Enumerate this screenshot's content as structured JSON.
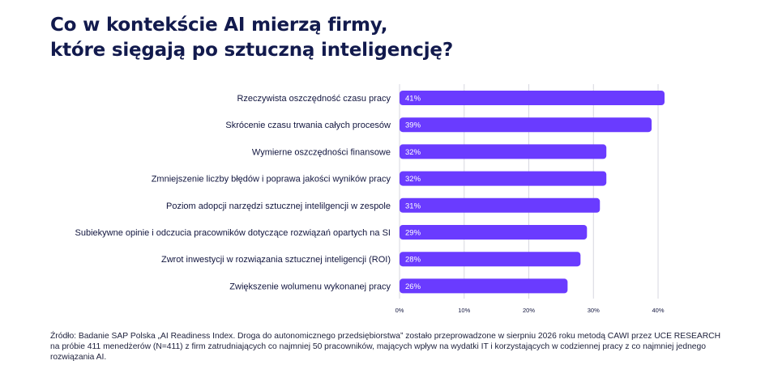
{
  "title_line1": "Co w kontekście AI mierzą firmy,",
  "title_line2": "które sięgają po sztuczną inteligencję?",
  "chart_data": {
    "type": "bar",
    "orientation": "horizontal",
    "categories": [
      "Rzeczywista oszczędność czasu pracy",
      "Skrócenie czasu trwania całych procesów",
      "Wymierne oszczędności finansowe",
      "Zmniejszenie liczby błędów i poprawa jakości wyników pracy",
      "Poziom adopcji narzędzi sztucznej intelilgencji w zespole",
      "Subiekywne opinie i odczucia pracowników dotyczące rozwiązań opartych na SI",
      "Zwrot inwestycji w rozwiązania sztucznej inteligencji (ROI)",
      "Zwiększenie wolumenu wykonanej pracy"
    ],
    "values": [
      41,
      39,
      32,
      32,
      31,
      29,
      28,
      26
    ],
    "value_labels": [
      "41%",
      "39%",
      "32%",
      "32%",
      "31%",
      "29%",
      "28%",
      "26%"
    ],
    "xlim": [
      0,
      41
    ],
    "x_ticks": [
      0,
      10,
      20,
      30,
      40
    ],
    "x_tick_labels": [
      "0%",
      "10%",
      "20%",
      "30%",
      "40%"
    ],
    "grid": "vertical",
    "bar_color": "#6a3bff",
    "grid_color": "#d7d7e0",
    "label_color": "#12163f"
  },
  "source_text": "Źródło: Badanie SAP Polska „AI Readiness Index. Droga do autonomicznego przedsiębiorstwa” zostało przeprowadzone w sierpniu 2026 roku metodą CAWI przez UCE RESEARCH na próbie 411 menedżerów (N=411) z firm zatrudniających co najmniej 50 pracowników, mających wpływ na wydatki IT i korzystających w codziennej pracy z co najmniej jednego rozwiązania AI."
}
